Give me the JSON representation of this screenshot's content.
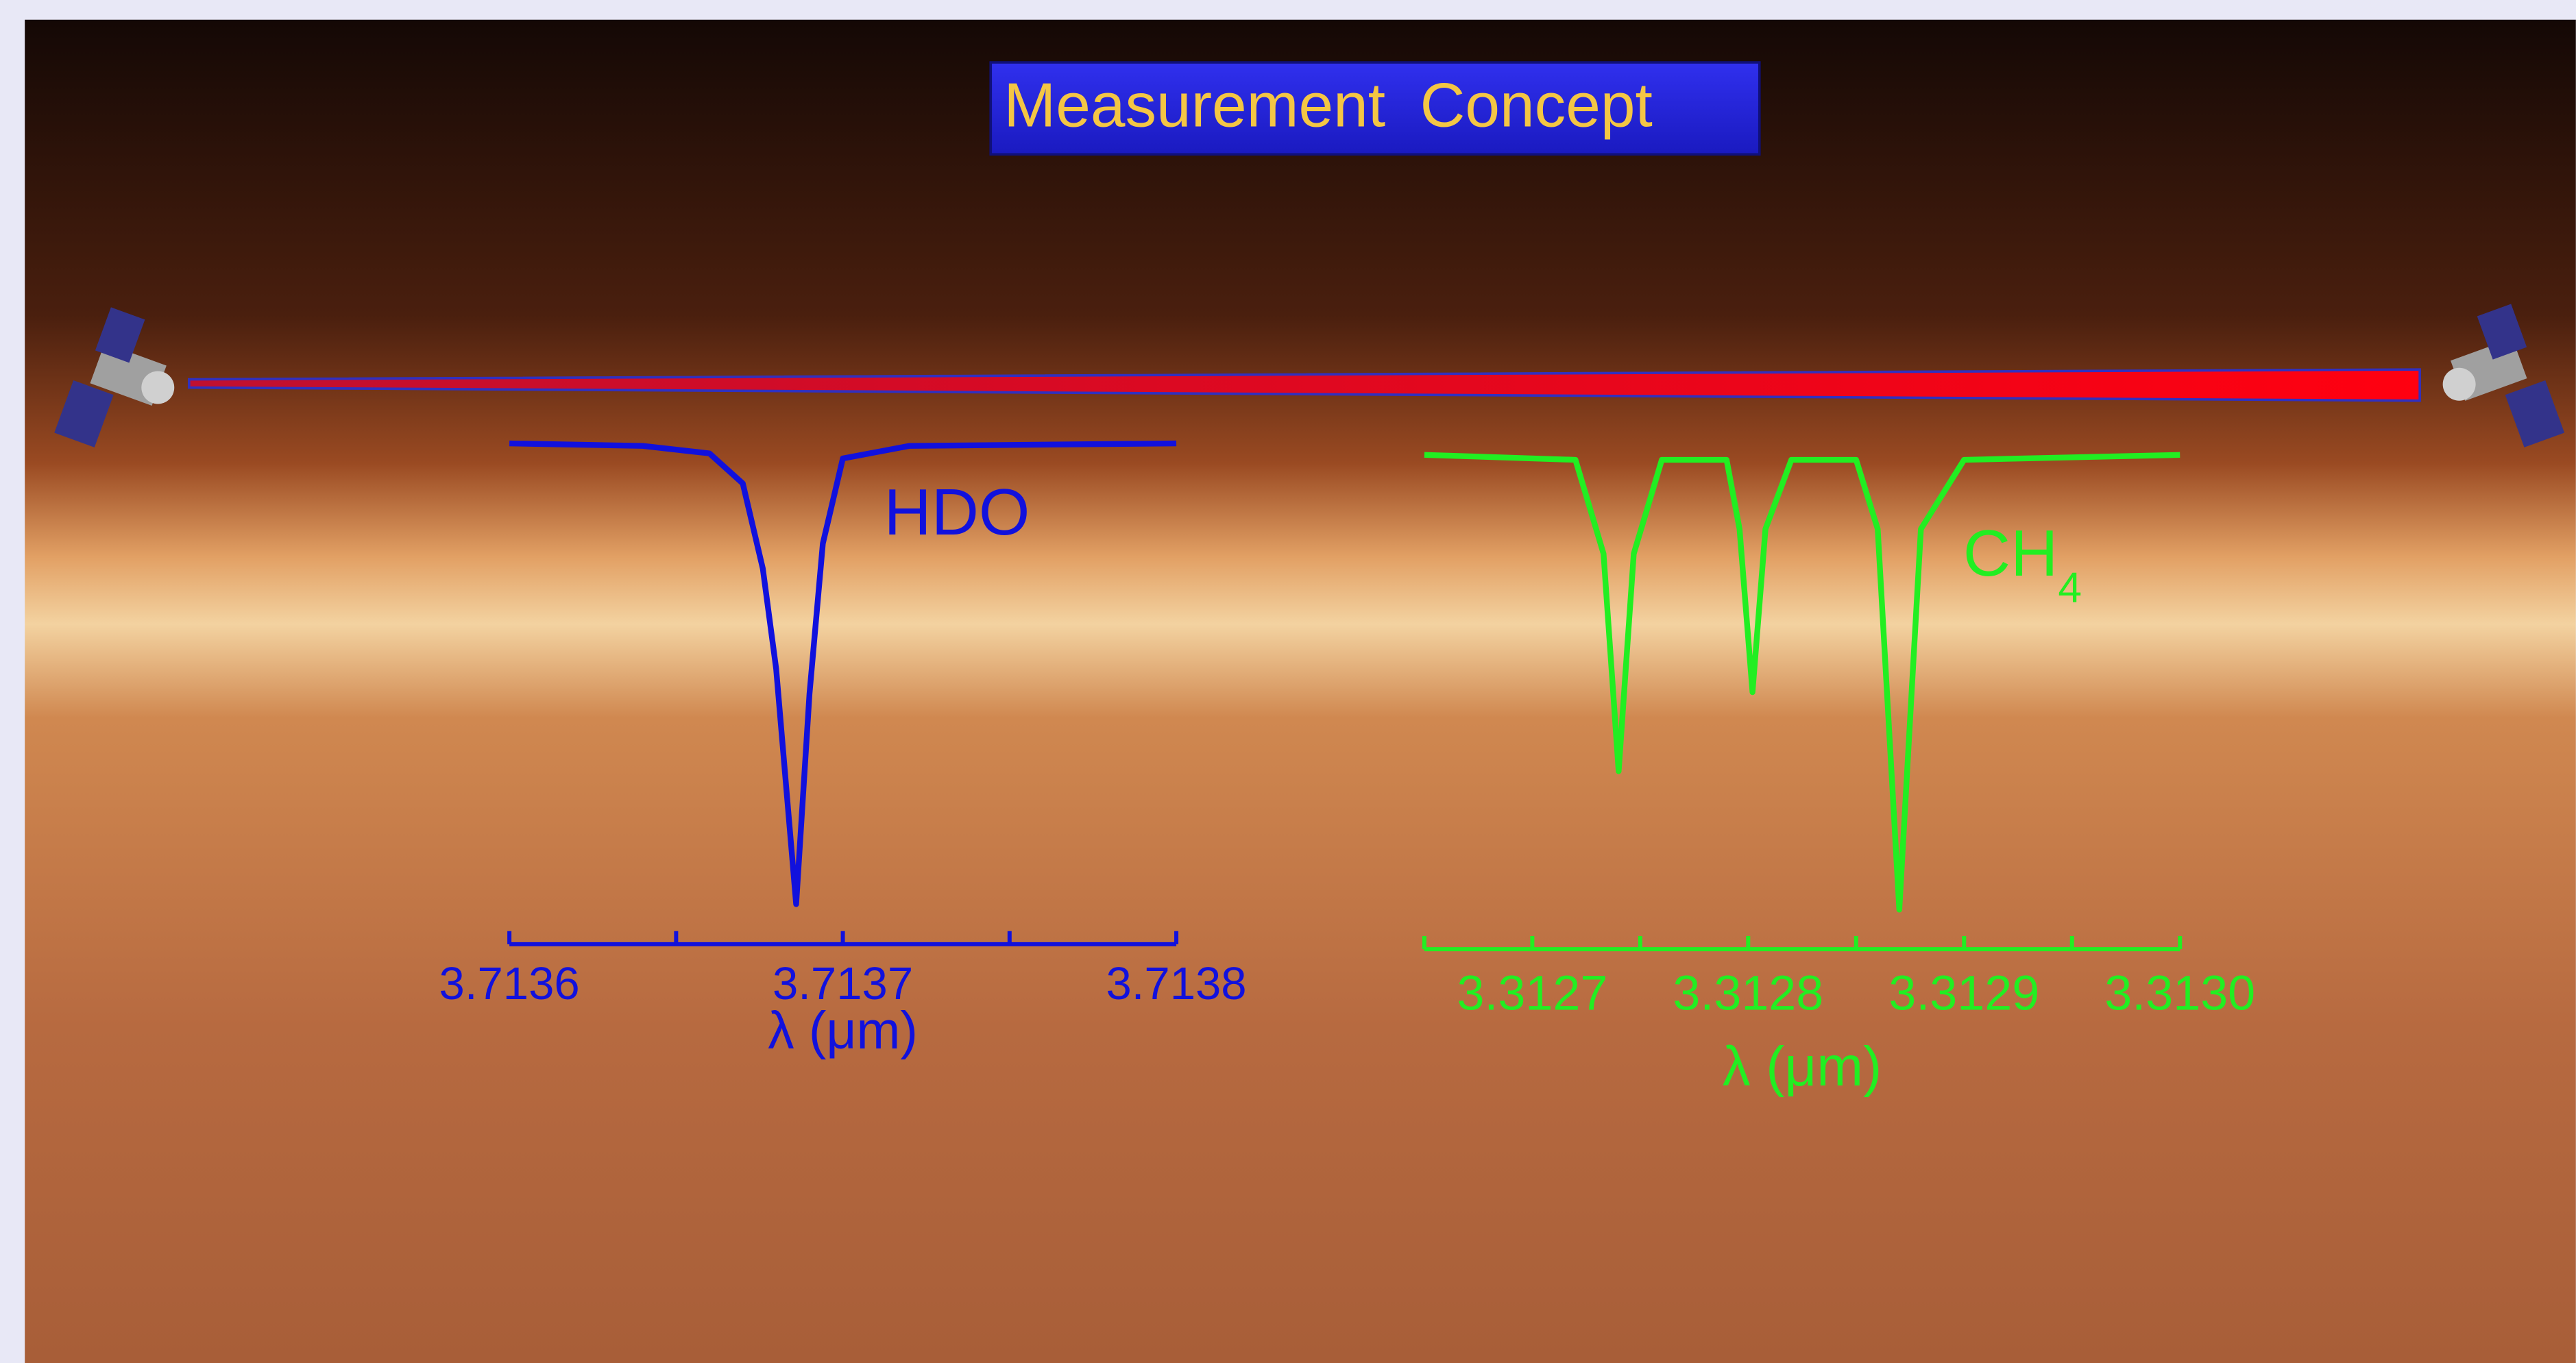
{
  "title": "Measurement  Concept",
  "chart_data": [
    {
      "type": "line",
      "label": "HDO",
      "color": "#1111dd",
      "x": [
        3.7136,
        3.71364,
        3.71366,
        3.71367,
        3.713676,
        3.71368,
        3.713686,
        3.71369,
        3.713694,
        3.7137,
        3.71372,
        3.7138
      ],
      "values": [
        1,
        0.995,
        0.98,
        0.92,
        0.75,
        0.55,
        0.08,
        0.5,
        0.8,
        0.97,
        0.995,
        1
      ],
      "xlim": [
        3.7136,
        3.7138
      ],
      "ylim": [
        0,
        1
      ],
      "xticks": [
        3.7136,
        3.7137,
        3.7138
      ],
      "minor_xticks": [
        3.71365,
        3.71375
      ],
      "xlabel": "λ (μm)"
    },
    {
      "type": "line",
      "label": "CH",
      "label_subscript": "4",
      "color": "#22ee22",
      "x": [
        3.31265,
        3.31272,
        3.312733,
        3.31274,
        3.312747,
        3.31276,
        3.31279,
        3.312796,
        3.312802,
        3.312808,
        3.31282,
        3.31285,
        3.31286,
        3.31287,
        3.31288,
        3.3129,
        3.313
      ],
      "values": [
        1,
        0.99,
        0.8,
        0.36,
        0.8,
        0.99,
        0.99,
        0.85,
        0.52,
        0.85,
        0.99,
        0.99,
        0.85,
        0.08,
        0.85,
        0.99,
        1
      ],
      "xlim": [
        3.31265,
        3.313
      ],
      "ylim": [
        0,
        1
      ],
      "xticks": [
        3.3127,
        3.3128,
        3.3129,
        {
          "value": 3.313,
          "label": "3.3130"
        }
      ],
      "minor_xticks": [
        3.31265,
        3.31275,
        3.31285,
        3.31295
      ],
      "xlabel": "λ (μm)"
    }
  ]
}
